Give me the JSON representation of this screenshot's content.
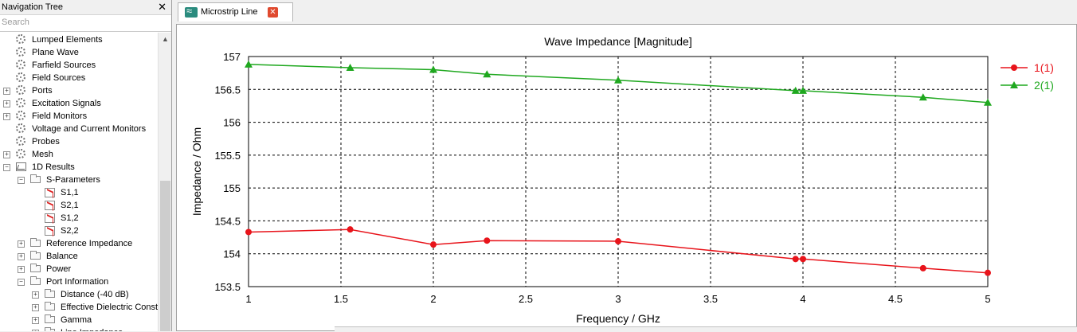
{
  "nav_panel": {
    "title": "Navigation Tree",
    "search_placeholder": "Search",
    "items": [
      {
        "label": "Lumped Elements",
        "icon": "gear-icon"
      },
      {
        "label": "Plane Wave",
        "icon": "gear-icon"
      },
      {
        "label": "Farfield Sources",
        "icon": "gear-icon"
      },
      {
        "label": "Field Sources",
        "icon": "gear-icon"
      },
      {
        "label": "Ports",
        "icon": "gear-icon"
      },
      {
        "label": "Excitation Signals",
        "icon": "gear-icon"
      },
      {
        "label": "Field Monitors",
        "icon": "gear-icon"
      },
      {
        "label": "Voltage and Current Monitors",
        "icon": "gear-icon"
      },
      {
        "label": "Probes",
        "icon": "gear-icon"
      },
      {
        "label": "Mesh",
        "icon": "gear-icon"
      },
      {
        "label": "1D Results",
        "icon": "chart-icon"
      },
      {
        "label": "S-Parameters",
        "icon": "folder-icon"
      },
      {
        "label": "S1,1",
        "icon": "sparam-icon"
      },
      {
        "label": "S2,1",
        "icon": "sparam-icon"
      },
      {
        "label": "S1,2",
        "icon": "sparam-icon"
      },
      {
        "label": "S2,2",
        "icon": "sparam-icon"
      },
      {
        "label": "Reference Impedance",
        "icon": "folder-icon"
      },
      {
        "label": "Balance",
        "icon": "folder-icon"
      },
      {
        "label": "Power",
        "icon": "folder-icon"
      },
      {
        "label": "Port Information",
        "icon": "folder-icon"
      },
      {
        "label": "Distance (-40 dB)",
        "icon": "folder-icon"
      },
      {
        "label": "Effective Dielectric Const",
        "icon": "folder-icon"
      },
      {
        "label": "Gamma",
        "icon": "folder-icon"
      },
      {
        "label": "Line Impedance",
        "icon": "folder-icon"
      }
    ]
  },
  "tab": {
    "label": "Microstrip Line",
    "icon": "wave-icon"
  },
  "chart_data": {
    "type": "line",
    "title": "Wave Impedance [Magnitude]",
    "xlabel": "Frequency / GHz",
    "ylabel": "Impedance / Ohm",
    "xlim": [
      1,
      5
    ],
    "ylim": [
      153.5,
      157
    ],
    "xticks": [
      "1",
      "1.5",
      "2",
      "2.5",
      "3",
      "3.5",
      "4",
      "4.5",
      "5"
    ],
    "yticks": [
      "153.5",
      "154",
      "154.5",
      "155",
      "155.5",
      "156",
      "156.5",
      "157"
    ],
    "grid": true,
    "legend_position": "right",
    "series": [
      {
        "name": "1(1)",
        "color": "#e8141b",
        "marker": "circle",
        "x": [
          1,
          1.55,
          2,
          2.29,
          3,
          3.96,
          4,
          4.65,
          5
        ],
        "y": [
          154.33,
          154.37,
          154.14,
          154.2,
          154.19,
          153.92,
          153.92,
          153.78,
          153.71
        ]
      },
      {
        "name": "2(1)",
        "color": "#1fa81f",
        "marker": "triangle",
        "x": [
          1,
          1.55,
          2,
          2.29,
          3,
          3.96,
          4,
          4.65,
          5
        ],
        "y": [
          156.88,
          156.83,
          156.8,
          156.73,
          156.64,
          156.48,
          156.48,
          156.38,
          156.3
        ]
      }
    ]
  }
}
